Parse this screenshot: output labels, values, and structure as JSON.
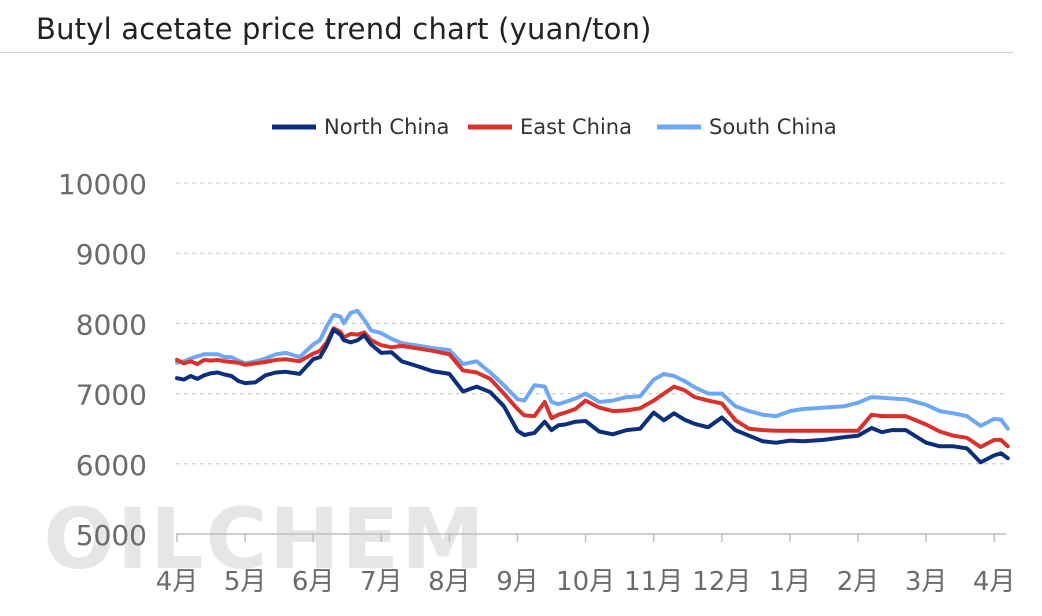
{
  "page": {
    "title": "Butyl acetate price trend chart (yuan/ton)",
    "watermark": "OILCHEM"
  },
  "colors": {
    "north": "#0b2f7a",
    "east": "#d9312c",
    "south": "#6fa8f2",
    "grid": "#c8c8c8",
    "tick_text": "#6b6b6b"
  },
  "chart_data": {
    "type": "line",
    "title": "Butyl acetate price trend chart (yuan/ton)",
    "xlabel": "",
    "ylabel": "",
    "ylim": [
      5000,
      10000
    ],
    "yticks": [
      5000,
      6000,
      7000,
      8000,
      9000,
      10000
    ],
    "x_categories": [
      "4月",
      "5月",
      "6月",
      "7月",
      "8月",
      "9月",
      "10月",
      "11月",
      "12月",
      "1月",
      "2月",
      "3月",
      "4月"
    ],
    "x": [
      0,
      0.1,
      0.2,
      0.3,
      0.4,
      0.5,
      0.6,
      0.7,
      0.8,
      0.9,
      1,
      1.15,
      1.3,
      1.45,
      1.6,
      1.8,
      2,
      2.1,
      2.2,
      2.3,
      2.4,
      2.45,
      2.55,
      2.65,
      2.75,
      2.85,
      3,
      3.15,
      3.3,
      3.5,
      3.75,
      4,
      4.2,
      4.4,
      4.6,
      4.8,
      5,
      5.1,
      5.25,
      5.4,
      5.5,
      5.6,
      5.7,
      5.85,
      6,
      6.2,
      6.4,
      6.6,
      6.8,
      7,
      7.15,
      7.3,
      7.45,
      7.6,
      7.8,
      8,
      8.2,
      8.4,
      8.6,
      8.8,
      9,
      9.2,
      9.5,
      9.8,
      10,
      10.2,
      10.35,
      10.5,
      10.7,
      11,
      11.2,
      11.4,
      11.6,
      11.8,
      12,
      12.1,
      12.2
    ],
    "legend": {
      "position": "top"
    },
    "grid": {
      "y": true,
      "x": false
    },
    "series": [
      {
        "name": "North China",
        "color": "#0b2f7a",
        "values": [
          7220,
          7200,
          7250,
          7210,
          7260,
          7290,
          7300,
          7270,
          7250,
          7180,
          7150,
          7160,
          7260,
          7300,
          7310,
          7280,
          7490,
          7520,
          7690,
          7910,
          7840,
          7760,
          7730,
          7760,
          7830,
          7700,
          7580,
          7590,
          7460,
          7400,
          7320,
          7280,
          7030,
          7100,
          7020,
          6820,
          6470,
          6410,
          6440,
          6600,
          6480,
          6550,
          6560,
          6600,
          6610,
          6460,
          6420,
          6480,
          6500,
          6730,
          6620,
          6720,
          6630,
          6570,
          6520,
          6660,
          6480,
          6400,
          6320,
          6300,
          6330,
          6320,
          6340,
          6380,
          6400,
          6510,
          6450,
          6480,
          6480,
          6300,
          6250,
          6250,
          6220,
          6020,
          6120,
          6150,
          6080
        ]
      },
      {
        "name": "East China",
        "color": "#d9312c",
        "values": [
          7480,
          7430,
          7460,
          7420,
          7480,
          7470,
          7480,
          7460,
          7450,
          7440,
          7410,
          7430,
          7450,
          7480,
          7490,
          7460,
          7570,
          7610,
          7730,
          7930,
          7880,
          7800,
          7850,
          7840,
          7870,
          7760,
          7690,
          7660,
          7680,
          7650,
          7610,
          7560,
          7330,
          7300,
          7210,
          7000,
          6780,
          6690,
          6680,
          6880,
          6650,
          6700,
          6730,
          6780,
          6900,
          6800,
          6750,
          6760,
          6790,
          6900,
          7000,
          7100,
          7050,
          6950,
          6900,
          6860,
          6620,
          6500,
          6480,
          6470,
          6470,
          6470,
          6470,
          6470,
          6470,
          6700,
          6680,
          6680,
          6680,
          6560,
          6460,
          6400,
          6370,
          6240,
          6340,
          6340,
          6250
        ]
      },
      {
        "name": "South China",
        "color": "#6fa8f2",
        "values": [
          7440,
          7460,
          7500,
          7530,
          7560,
          7560,
          7560,
          7520,
          7520,
          7470,
          7430,
          7460,
          7500,
          7560,
          7580,
          7520,
          7700,
          7760,
          7960,
          8120,
          8100,
          8000,
          8150,
          8180,
          8050,
          7900,
          7860,
          7780,
          7720,
          7690,
          7650,
          7620,
          7420,
          7460,
          7300,
          7120,
          6920,
          6900,
          7120,
          7100,
          6880,
          6850,
          6880,
          6930,
          7000,
          6880,
          6900,
          6950,
          6960,
          7200,
          7280,
          7250,
          7180,
          7090,
          7000,
          7000,
          6820,
          6750,
          6700,
          6680,
          6750,
          6780,
          6800,
          6820,
          6870,
          6950,
          6940,
          6930,
          6920,
          6840,
          6750,
          6720,
          6680,
          6540,
          6640,
          6630,
          6500
        ]
      }
    ]
  }
}
